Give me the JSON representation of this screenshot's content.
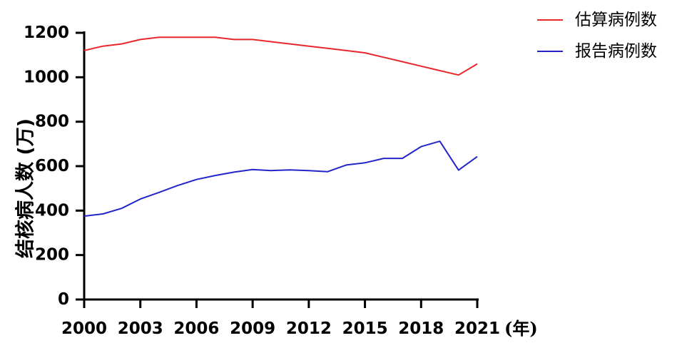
{
  "chart_data": {
    "type": "line",
    "ylabel": "结核病人数 (万)",
    "xunit": "(年)",
    "xlim": [
      2000,
      2021
    ],
    "ylim": [
      0,
      1200
    ],
    "xticks": [
      2000,
      2003,
      2006,
      2009,
      2012,
      2015,
      2018,
      2021
    ],
    "yticks": [
      0,
      200,
      400,
      600,
      800,
      1000,
      1200
    ],
    "grid": false,
    "legend_position": "top-right",
    "x": [
      2000,
      2001,
      2002,
      2003,
      2004,
      2005,
      2006,
      2007,
      2008,
      2009,
      2010,
      2011,
      2012,
      2013,
      2014,
      2015,
      2016,
      2017,
      2018,
      2019,
      2020,
      2021
    ],
    "series": [
      {
        "name": "估算病例数",
        "color": "#e8262b",
        "values": [
          1120,
          1140,
          1150,
          1170,
          1180,
          1180,
          1180,
          1180,
          1170,
          1170,
          1160,
          1150,
          1140,
          1130,
          1120,
          1110,
          1090,
          1070,
          1050,
          1030,
          1010,
          1060
        ]
      },
      {
        "name": "报告病例数",
        "color": "#2226c8",
        "values": [
          375,
          385,
          410,
          452,
          482,
          513,
          540,
          558,
          573,
          585,
          580,
          583,
          580,
          575,
          605,
          615,
          635,
          635,
          688,
          712,
          582,
          643
        ]
      }
    ]
  }
}
